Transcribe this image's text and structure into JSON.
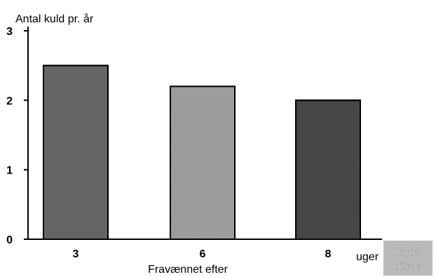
{
  "chart_data": {
    "type": "bar",
    "ylabel": "Antal kuld pr. år",
    "xlabel": "Fravænnet efter",
    "x_unit": "uger",
    "categories": [
      "3",
      "6",
      "8"
    ],
    "values": [
      2.5,
      2.2,
      2.0
    ],
    "ylim": [
      0,
      3
    ],
    "yticks": [
      "0",
      "1",
      "2",
      "3"
    ],
    "bar_colors": [
      "#7a7a7a",
      "#bdbdbd",
      "#555555"
    ],
    "grid": false,
    "legend": "none"
  },
  "stamp": {
    "text": "Kopier billede"
  }
}
